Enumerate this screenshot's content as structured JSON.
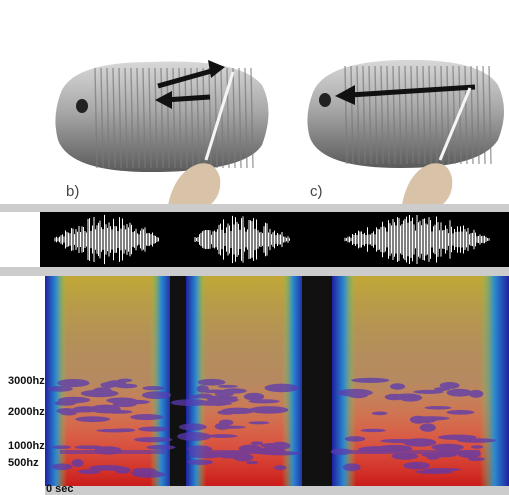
{
  "panels": {
    "b": "b)",
    "c": "c)"
  },
  "spectrogram": {
    "frequency_labels": [
      "3000hz",
      "2000hz",
      "1000hz",
      "500hz"
    ],
    "time_label": "0 sec"
  }
}
